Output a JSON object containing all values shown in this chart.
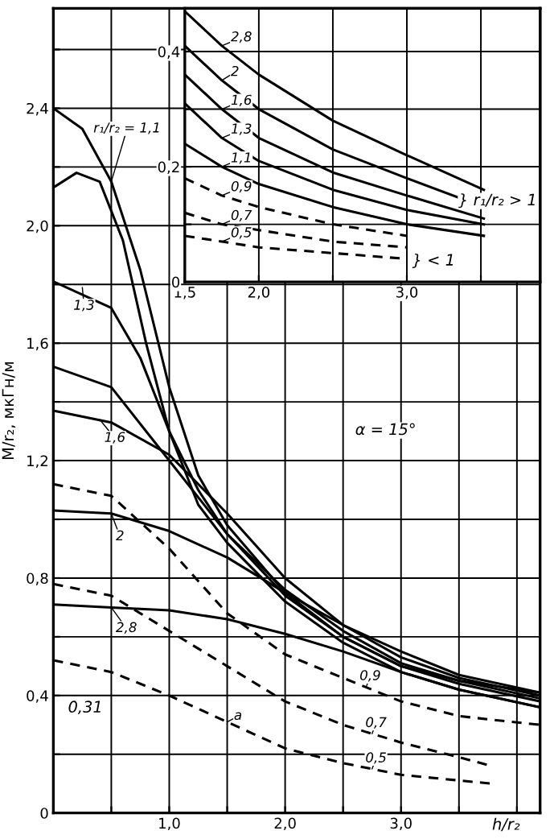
{
  "chart_data": [
    {
      "type": "line",
      "xlabel": "h/r₂",
      "ylabel": "M/r₂, мкГн/м",
      "xlim": [
        0,
        4.2
      ],
      "ylim": [
        0,
        2.74
      ],
      "xticks": [
        {
          "value": 0.5,
          "label": null
        },
        {
          "value": 1,
          "label": "1,0"
        },
        {
          "value": 1.5,
          "label": null
        },
        {
          "value": 2,
          "label": "2,0"
        },
        {
          "value": 2.5,
          "label": null
        },
        {
          "value": 3,
          "label": "3,0"
        },
        {
          "value": 3.5,
          "label": null
        },
        {
          "value": 4,
          "label": null
        }
      ],
      "yticks": [
        0,
        {
          "value": 0.2,
          "label": null
        },
        {
          "value": 0.4,
          "label": "0,4"
        },
        {
          "value": 0.6,
          "label": null
        },
        {
          "value": 0.8,
          "label": "0,8"
        },
        {
          "value": 1.0,
          "label": null
        },
        {
          "value": 1.2,
          "label": "1,2"
        },
        {
          "value": 1.4,
          "label": null
        },
        {
          "value": 1.6,
          "label": "1,6"
        },
        {
          "value": 1.8,
          "label": null
        },
        {
          "value": 2.0,
          "label": "2,0"
        },
        {
          "value": 2.2,
          "label": null
        },
        {
          "value": 2.4,
          "label": "2,4"
        },
        {
          "value": 2.6,
          "label": null
        }
      ],
      "grid": true,
      "series": [
        {
          "color": "#000000",
          "line_style": "solid",
          "x": [
            0,
            0.25,
            0.5,
            0.75,
            1.0,
            1.25,
            1.5,
            2.0,
            2.5,
            3.0,
            3.5,
            4.2
          ],
          "values": [
            2.4,
            2.33,
            2.15,
            1.85,
            1.45,
            1.15,
            0.98,
            0.75,
            0.6,
            0.5,
            0.45,
            0.41
          ]
        },
        {
          "color": "#000000",
          "line_style": "solid",
          "x": [
            0,
            0.2,
            0.4,
            0.6,
            0.8,
            1.0,
            1.25,
            1.5,
            2.0,
            2.5,
            3.0,
            3.5,
            4.2
          ],
          "values": [
            2.13,
            2.18,
            2.15,
            1.95,
            1.6,
            1.3,
            1.05,
            0.92,
            0.72,
            0.58,
            0.48,
            0.42,
            0.36
          ]
        },
        {
          "color": "#000000",
          "line_style": "solid",
          "x": [
            0,
            0.5,
            0.75,
            1.0,
            1.25,
            1.5,
            2.0,
            2.5,
            3.0,
            3.5,
            4.2
          ],
          "values": [
            1.81,
            1.72,
            1.55,
            1.3,
            1.1,
            0.95,
            0.74,
            0.6,
            0.5,
            0.44,
            0.38
          ]
        },
        {
          "color": "#000000",
          "line_style": "solid",
          "x": [
            0,
            0.5,
            1.0,
            1.5,
            2.0,
            2.5,
            3.0,
            3.5,
            4.2
          ],
          "values": [
            1.52,
            1.45,
            1.2,
            0.95,
            0.76,
            0.62,
            0.51,
            0.45,
            0.39
          ]
        },
        {
          "color": "#000000",
          "line_style": "solid",
          "x": [
            0,
            0.5,
            1.0,
            1.5,
            2.0,
            2.5,
            3.0,
            3.5,
            4.2
          ],
          "values": [
            1.37,
            1.33,
            1.22,
            1.02,
            0.8,
            0.64,
            0.53,
            0.46,
            0.4
          ]
        },
        {
          "color": "#000000",
          "line_style": "solid",
          "x": [
            0,
            0.5,
            1.0,
            1.5,
            2.0,
            2.5,
            3.0,
            3.5,
            4.2
          ],
          "values": [
            1.03,
            1.02,
            0.96,
            0.87,
            0.75,
            0.64,
            0.55,
            0.47,
            0.41
          ]
        },
        {
          "color": "#000000",
          "line_style": "solid",
          "x": [
            0,
            0.5,
            1.0,
            1.5,
            2.0,
            2.5,
            3.0,
            3.5,
            4.2
          ],
          "values": [
            0.71,
            0.7,
            0.69,
            0.66,
            0.61,
            0.55,
            0.48,
            0.42,
            0.36
          ]
        },
        {
          "color": "#000000",
          "line_style": "dashed",
          "x": [
            0,
            0.5,
            1.0,
            1.5,
            2.0,
            2.5,
            3.0,
            3.5,
            4.2
          ],
          "values": [
            1.12,
            1.08,
            0.9,
            0.68,
            0.54,
            0.46,
            0.38,
            0.33,
            0.3
          ]
        },
        {
          "color": "#000000",
          "line_style": "dashed",
          "x": [
            0,
            0.5,
            1.0,
            1.5,
            2.0,
            2.5,
            3.0,
            3.5,
            3.78
          ],
          "values": [
            0.78,
            0.74,
            0.62,
            0.5,
            0.38,
            0.3,
            0.24,
            0.19,
            0.16
          ]
        },
        {
          "color": "#000000",
          "line_style": "dashed",
          "x": [
            0,
            0.5,
            1.0,
            1.5,
            2.0,
            2.5,
            3.0,
            3.78
          ],
          "values": [
            0.52,
            0.48,
            0.4,
            0.31,
            0.22,
            0.17,
            0.13,
            0.1
          ]
        }
      ],
      "annotations": [
        {
          "text": "r₁/r₂ = 1,1",
          "x": 0.5,
          "y": 2.15
        },
        {
          "text": "1,3",
          "x": 0.25,
          "y": 1.79
        },
        {
          "text": "1,6",
          "x": 0.4,
          "y": 1.34
        },
        {
          "text": "2",
          "x": 0.5,
          "y": 1.02
        },
        {
          "text": "2,8",
          "x": 0.5,
          "y": 0.7
        },
        "0,31",
        {
          "text": "a",
          "x": 1.5,
          "y": 0.31
        },
        {
          "text": "0,9",
          "x": 2.7,
          "y": 0.43
        },
        {
          "text": "0,7",
          "x": 2.75,
          "y": 0.27
        },
        {
          "text": "0,5",
          "x": 2.75,
          "y": 0.15
        },
        "α = 15°"
      ]
    },
    {
      "type": "line",
      "xlim": [
        1.5,
        3.9
      ],
      "ylim": [
        0,
        0.475
      ],
      "xticks": [
        {
          "value": 1.5,
          "label": "1,5"
        },
        {
          "value": 2.0,
          "label": "2,0"
        },
        {
          "value": 2.5,
          "label": null
        },
        {
          "value": 3.0,
          "label": "3,0"
        },
        {
          "value": 3.5,
          "label": null
        }
      ],
      "yticks": [
        0,
        {
          "value": 0.1,
          "label": null
        },
        {
          "value": 0.2,
          "label": "0,2"
        },
        {
          "value": 0.3,
          "label": null
        },
        {
          "value": 0.4,
          "label": "0,4"
        }
      ],
      "grid": true,
      "series": [
        {
          "color": "#000000",
          "line_style": "solid",
          "x": [
            1.5,
            1.75,
            2.0,
            2.5,
            3.0,
            3.52
          ],
          "values": [
            0.47,
            0.41,
            0.36,
            0.28,
            0.22,
            0.16
          ]
        },
        {
          "color": "#000000",
          "line_style": "solid",
          "x": [
            1.5,
            1.75,
            2.0,
            2.5,
            3.0,
            3.52
          ],
          "values": [
            0.41,
            0.35,
            0.3,
            0.23,
            0.18,
            0.13
          ]
        },
        {
          "color": "#000000",
          "line_style": "solid",
          "x": [
            1.5,
            1.75,
            2.0,
            2.5,
            3.0,
            3.52
          ],
          "values": [
            0.36,
            0.3,
            0.25,
            0.19,
            0.15,
            0.11
          ]
        },
        {
          "color": "#000000",
          "line_style": "solid",
          "x": [
            1.5,
            1.75,
            2.0,
            2.5,
            3.0,
            3.52
          ],
          "values": [
            0.31,
            0.25,
            0.21,
            0.16,
            0.125,
            0.1
          ]
        },
        {
          "color": "#000000",
          "line_style": "solid",
          "x": [
            1.5,
            1.75,
            2.0,
            2.5,
            3.0,
            3.52
          ],
          "values": [
            0.24,
            0.2,
            0.17,
            0.13,
            0.1,
            0.08
          ]
        },
        {
          "color": "#000000",
          "line_style": "dashed",
          "x": [
            1.5,
            1.75,
            2.0,
            2.5,
            3.0
          ],
          "values": [
            0.18,
            0.15,
            0.13,
            0.1,
            0.08
          ]
        },
        {
          "color": "#000000",
          "line_style": "dashed",
          "x": [
            1.5,
            1.75,
            2.0,
            2.5,
            3.0
          ],
          "values": [
            0.12,
            0.1,
            0.09,
            0.07,
            0.06
          ]
        },
        {
          "color": "#000000",
          "line_style": "dashed",
          "x": [
            1.5,
            1.75,
            2.0,
            2.5,
            3.0
          ],
          "values": [
            0.08,
            0.07,
            0.06,
            0.05,
            0.04
          ]
        }
      ],
      "annotations": [
        {
          "text": "2,8",
          "x": 1.75,
          "y": 0.41
        },
        {
          "text": "2",
          "x": 1.75,
          "y": 0.35
        },
        {
          "text": "1,6",
          "x": 1.75,
          "y": 0.3
        },
        {
          "text": "1,3",
          "x": 1.75,
          "y": 0.25
        },
        {
          "text": "1,1",
          "x": 1.75,
          "y": 0.2
        },
        {
          "text": "0,9",
          "x": 1.75,
          "y": 0.15
        },
        {
          "text": "0,7",
          "x": 1.75,
          "y": 0.1
        },
        {
          "text": "0,5",
          "x": 1.75,
          "y": 0.07
        },
        "} r₁/r₂ > 1",
        "} < 1"
      ]
    }
  ]
}
